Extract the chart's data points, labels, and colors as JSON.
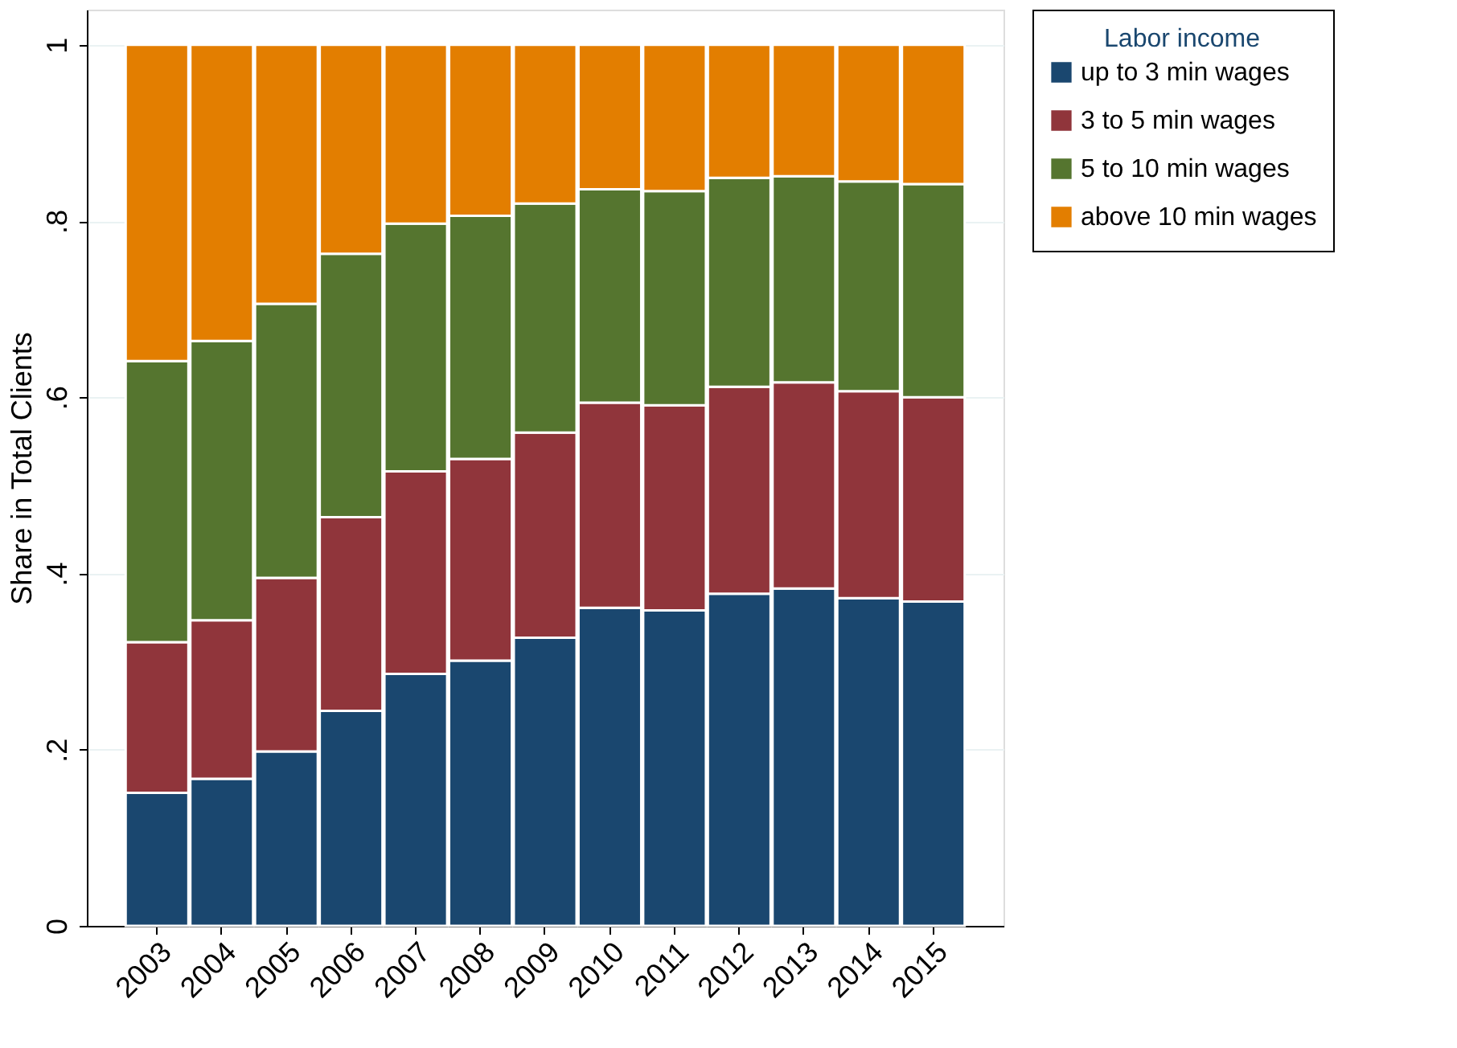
{
  "chart_data": {
    "type": "bar",
    "stacked": true,
    "ylabel": "Share in Total Clients",
    "legend_title": "Labor income",
    "legend": "right",
    "grid": "y",
    "categories": [
      "2003",
      "2004",
      "2005",
      "2006",
      "2007",
      "2008",
      "2009",
      "2010",
      "2011",
      "2012",
      "2013",
      "2014",
      "2015"
    ],
    "series": [
      {
        "name": "up to 3 min wages",
        "color": "#1a476f",
        "values": [
          0.151,
          0.167,
          0.198,
          0.244,
          0.286,
          0.301,
          0.327,
          0.361,
          0.358,
          0.377,
          0.383,
          0.372,
          0.368
        ]
      },
      {
        "name": "3 to 5 min wages",
        "color": "#90353b",
        "values": [
          0.171,
          0.18,
          0.197,
          0.22,
          0.23,
          0.229,
          0.233,
          0.233,
          0.233,
          0.235,
          0.234,
          0.235,
          0.232
        ]
      },
      {
        "name": "5 to 10 min wages",
        "color": "#55752f",
        "values": [
          0.319,
          0.317,
          0.311,
          0.299,
          0.281,
          0.276,
          0.26,
          0.242,
          0.243,
          0.237,
          0.234,
          0.238,
          0.242
        ]
      },
      {
        "name": "above 10 min wages",
        "color": "#e37e00",
        "values": [
          0.359,
          0.336,
          0.294,
          0.237,
          0.203,
          0.194,
          0.18,
          0.164,
          0.166,
          0.151,
          0.149,
          0.155,
          0.158
        ]
      }
    ],
    "ylim": [
      0,
      1.04
    ],
    "yticks": [
      0,
      {
        "value": 0.2,
        "label": ".2"
      },
      {
        "value": 0.4,
        "label": ".4"
      },
      {
        "value": 0.6,
        "label": ".6"
      },
      {
        "value": 0.8,
        "label": ".8"
      },
      1
    ]
  }
}
